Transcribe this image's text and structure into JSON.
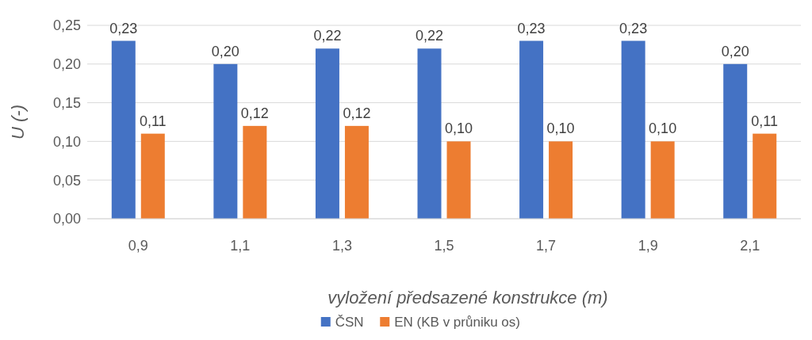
{
  "chart_data": {
    "type": "bar",
    "xlabel": "vyložení předsazené konstrukce (m)",
    "ylabel": "U (-)",
    "categories": [
      "0,9",
      "1,1",
      "1,3",
      "1,5",
      "1,7",
      "1,9",
      "2,1"
    ],
    "series": [
      {
        "name": "ČSN",
        "color": "#4472c4",
        "values": [
          0.23,
          0.2,
          0.22,
          0.22,
          0.23,
          0.23,
          0.2
        ],
        "value_labels": [
          "0,23",
          "0,20",
          "0,22",
          "0,22",
          "0,23",
          "0,23",
          "0,20"
        ]
      },
      {
        "name": "EN (KB v průniku os)",
        "color": "#ed7d31",
        "values": [
          0.11,
          0.12,
          0.12,
          0.1,
          0.1,
          0.1,
          0.11
        ],
        "value_labels": [
          "0,11",
          "0,12",
          "0,12",
          "0,10",
          "0,10",
          "0,10",
          "0,11"
        ]
      }
    ],
    "ylim": [
      0,
      0.25
    ],
    "yticks": [
      {
        "value": 0,
        "label": "0,00"
      },
      {
        "value": 0.05,
        "label": "0,05"
      },
      {
        "value": 0.1,
        "label": "0,10"
      },
      {
        "value": 0.15,
        "label": "0,15"
      },
      {
        "value": 0.2,
        "label": "0,20"
      },
      {
        "value": 0.25,
        "label": "0,25"
      }
    ],
    "grid": "y",
    "legend": "bottom"
  }
}
